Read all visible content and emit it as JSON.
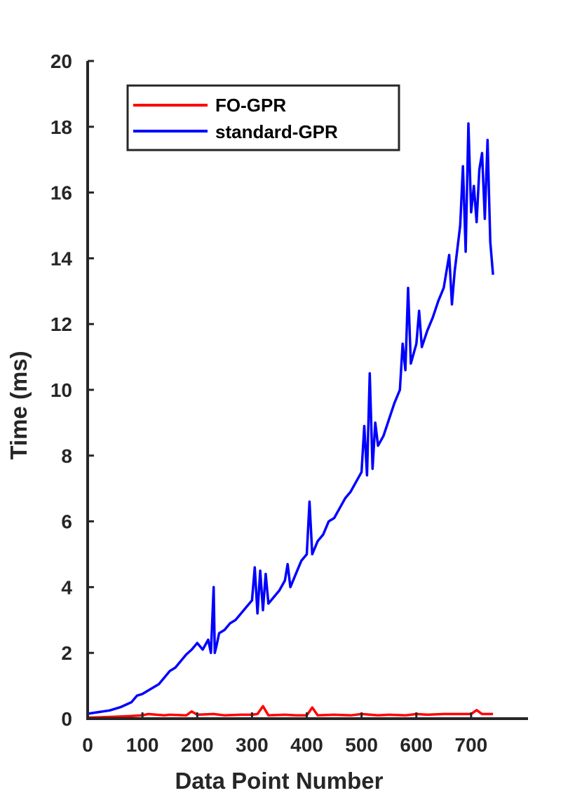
{
  "chart_data": {
    "type": "line",
    "title": "",
    "xlabel": "Data Point Number",
    "ylabel": "Time (ms)",
    "xlim": [
      0,
      800
    ],
    "ylim": [
      0,
      20
    ],
    "xticks": [
      0,
      100,
      200,
      300,
      400,
      500,
      600,
      700
    ],
    "yticks": [
      0,
      2,
      4,
      6,
      8,
      10,
      12,
      14,
      16,
      18,
      20
    ],
    "grid": false,
    "legend_position": "top-left",
    "series": [
      {
        "name": "FO-GPR",
        "color": "#ff0000",
        "x": [
          0,
          20,
          50,
          80,
          100,
          110,
          140,
          150,
          180,
          190,
          200,
          230,
          250,
          280,
          300,
          310,
          320,
          330,
          360,
          380,
          400,
          410,
          420,
          450,
          480,
          500,
          530,
          550,
          580,
          600,
          620,
          650,
          680,
          700,
          710,
          720,
          740
        ],
        "y": [
          0.03,
          0.04,
          0.06,
          0.08,
          0.1,
          0.14,
          0.1,
          0.12,
          0.1,
          0.22,
          0.12,
          0.14,
          0.1,
          0.12,
          0.12,
          0.14,
          0.38,
          0.1,
          0.12,
          0.1,
          0.1,
          0.34,
          0.1,
          0.12,
          0.1,
          0.14,
          0.1,
          0.12,
          0.1,
          0.14,
          0.12,
          0.14,
          0.14,
          0.14,
          0.26,
          0.14,
          0.14
        ]
      },
      {
        "name": "standard-GPR",
        "color": "#0000ff",
        "x": [
          0,
          20,
          40,
          60,
          80,
          90,
          100,
          110,
          120,
          130,
          140,
          150,
          160,
          170,
          180,
          190,
          200,
          210,
          220,
          225,
          230,
          232,
          235,
          240,
          250,
          260,
          270,
          280,
          290,
          300,
          305,
          310,
          315,
          320,
          325,
          330,
          340,
          350,
          360,
          365,
          370,
          380,
          390,
          400,
          405,
          410,
          420,
          430,
          440,
          450,
          460,
          470,
          480,
          490,
          500,
          505,
          510,
          515,
          520,
          525,
          530,
          540,
          550,
          560,
          570,
          575,
          580,
          585,
          590,
          600,
          605,
          610,
          620,
          630,
          640,
          650,
          660,
          665,
          670,
          680,
          685,
          690,
          695,
          700,
          705,
          710,
          715,
          720,
          725,
          730,
          735,
          740
        ],
        "y": [
          0.15,
          0.2,
          0.25,
          0.35,
          0.5,
          0.7,
          0.75,
          0.85,
          0.95,
          1.05,
          1.25,
          1.45,
          1.55,
          1.75,
          1.95,
          2.1,
          2.3,
          2.1,
          2.4,
          2.0,
          4.0,
          2.0,
          2.2,
          2.6,
          2.7,
          2.9,
          3.0,
          3.2,
          3.4,
          3.6,
          4.6,
          3.2,
          4.5,
          3.3,
          4.4,
          3.5,
          3.7,
          3.9,
          4.2,
          4.7,
          4.0,
          4.4,
          4.8,
          5.0,
          6.6,
          5.0,
          5.4,
          5.6,
          6.0,
          6.1,
          6.4,
          6.7,
          6.9,
          7.2,
          7.5,
          8.9,
          7.4,
          10.5,
          7.6,
          9.0,
          8.3,
          8.6,
          9.1,
          9.6,
          10.0,
          11.4,
          10.6,
          13.1,
          10.8,
          11.4,
          12.4,
          11.3,
          11.8,
          12.2,
          12.7,
          13.1,
          14.1,
          12.6,
          13.6,
          15.0,
          16.8,
          14.2,
          18.1,
          15.4,
          16.2,
          15.1,
          16.7,
          17.2,
          15.2,
          17.6,
          14.5,
          13.5
        ]
      }
    ]
  }
}
